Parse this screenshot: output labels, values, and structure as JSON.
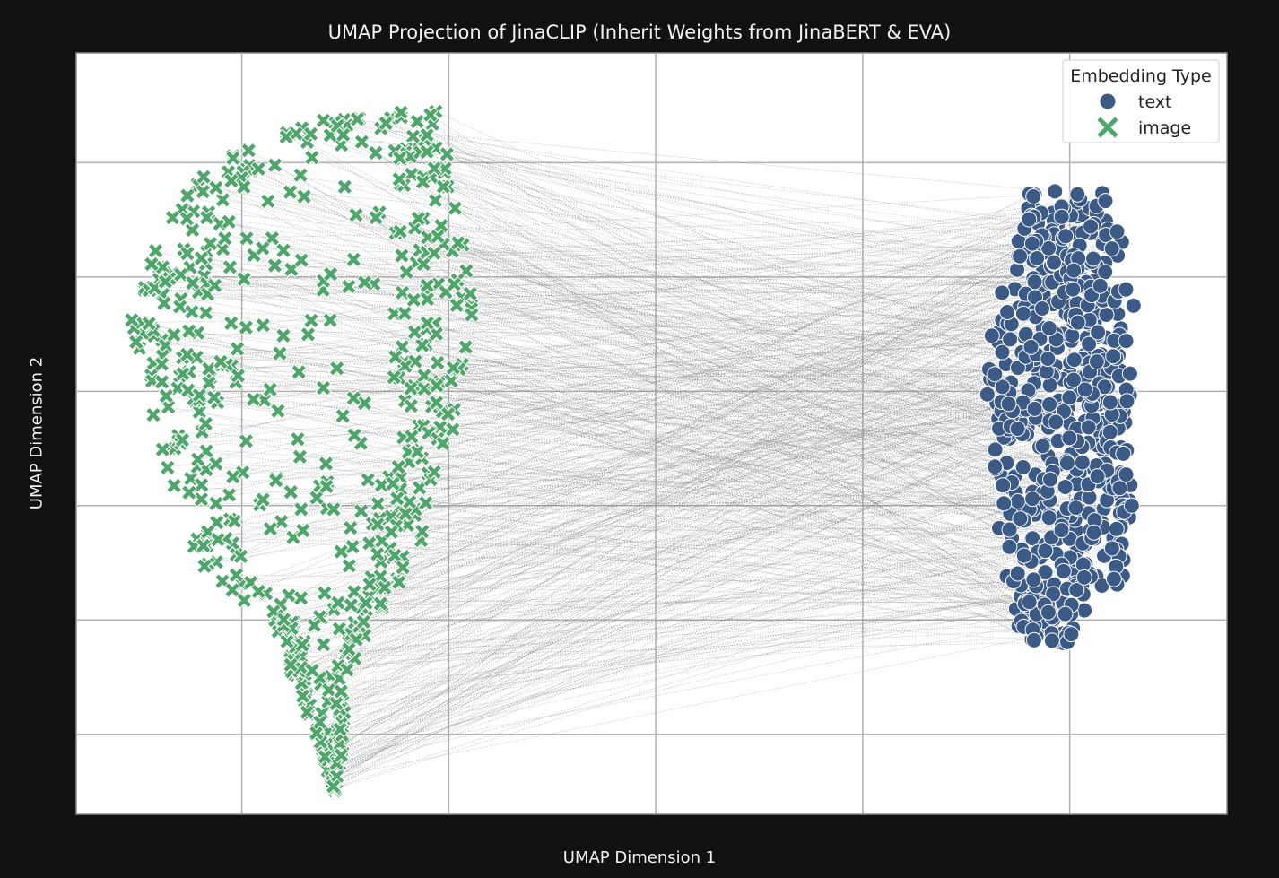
{
  "chart_data": {
    "type": "scatter",
    "title": "UMAP Projection of JinaCLIP (Inherit Weights from JinaBERT & EVA)",
    "xlabel": "UMAP Dimension 1",
    "ylabel": "UMAP Dimension 2",
    "xlim": [
      -1.8,
      3.76
    ],
    "ylim": [
      -5.7,
      0.96
    ],
    "grid": true,
    "tick_labels_visible": false,
    "xticks": [
      -1,
      0,
      1,
      2,
      3
    ],
    "yticks": [
      -5,
      -4,
      -3,
      -2,
      -1,
      0
    ],
    "legend": {
      "title": "Embedding Type",
      "placement": "top-right",
      "entries": [
        {
          "label": "text",
          "marker": "circle",
          "color": "#3b5a86"
        },
        {
          "label": "image",
          "marker": "x",
          "color": "#4fa66a"
        }
      ]
    },
    "pair_lines": {
      "color": "#808080",
      "style": "dotted",
      "description": "each image embedding connected to its paired text embedding"
    },
    "series": [
      {
        "name": "text",
        "marker": "circle",
        "color": "#3b5a86",
        "point_count": 600,
        "cluster_center": [
          3.08,
          -2.0
        ],
        "x_range": [
          2.6,
          3.4
        ],
        "y_range": [
          -4.2,
          -0.25
        ]
      },
      {
        "name": "image",
        "marker": "x",
        "color": "#4fa66a",
        "point_count": 600,
        "cluster_center": [
          -0.9,
          -2.0
        ],
        "x_range": [
          -1.6,
          0.15
        ],
        "y_range": [
          -5.5,
          0.45
        ]
      }
    ]
  }
}
